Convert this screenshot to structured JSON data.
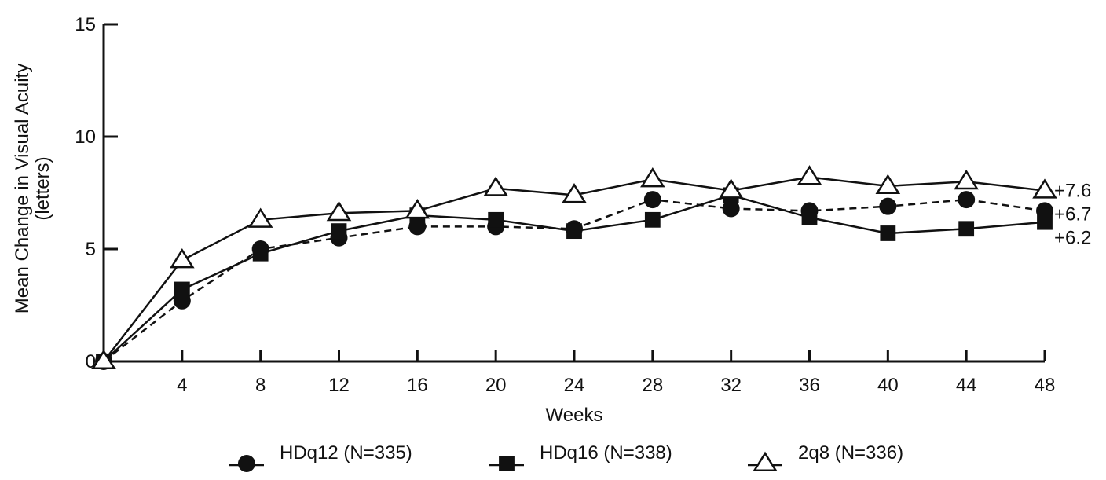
{
  "chart_data": {
    "type": "line",
    "xlabel": "Weeks",
    "ylabel": "Mean Change in Visual Acuity",
    "ylabel_unit": "(letters)",
    "xlim": [
      0,
      48
    ],
    "ylim": [
      0,
      15
    ],
    "x_ticks": [
      "4",
      "8",
      "12",
      "16",
      "20",
      "24",
      "28",
      "32",
      "36",
      "40",
      "44",
      "48"
    ],
    "y_ticks": [
      "0",
      "5",
      "10",
      "15"
    ],
    "grid": false,
    "legend_position": "bottom",
    "x": [
      0,
      4,
      8,
      12,
      16,
      20,
      24,
      28,
      32,
      36,
      40,
      44,
      48
    ],
    "series": [
      {
        "name": "HDq12 (N=335)",
        "marker": "circle",
        "line": "dashed",
        "values": [
          0,
          2.7,
          5.0,
          5.5,
          6.0,
          6.0,
          5.9,
          7.2,
          6.8,
          6.7,
          6.9,
          7.2,
          6.7
        ],
        "end_label": "+6.7"
      },
      {
        "name": "HDq16 (N=338)",
        "marker": "square",
        "line": "solid",
        "values": [
          0,
          3.2,
          4.8,
          5.8,
          6.5,
          6.3,
          5.8,
          6.3,
          7.4,
          6.4,
          5.7,
          5.9,
          6.2
        ],
        "end_label": "+6.2"
      },
      {
        "name": "2q8 (N=336)",
        "marker": "triangle",
        "line": "solid",
        "values": [
          0,
          4.5,
          6.3,
          6.6,
          6.7,
          7.7,
          7.4,
          8.1,
          7.6,
          8.2,
          7.8,
          8.0,
          7.6
        ],
        "end_label": "+7.6"
      }
    ],
    "colors": {
      "line": "#111111",
      "marker_fill": "#111111",
      "open_marker_fill": "#ffffff"
    }
  }
}
